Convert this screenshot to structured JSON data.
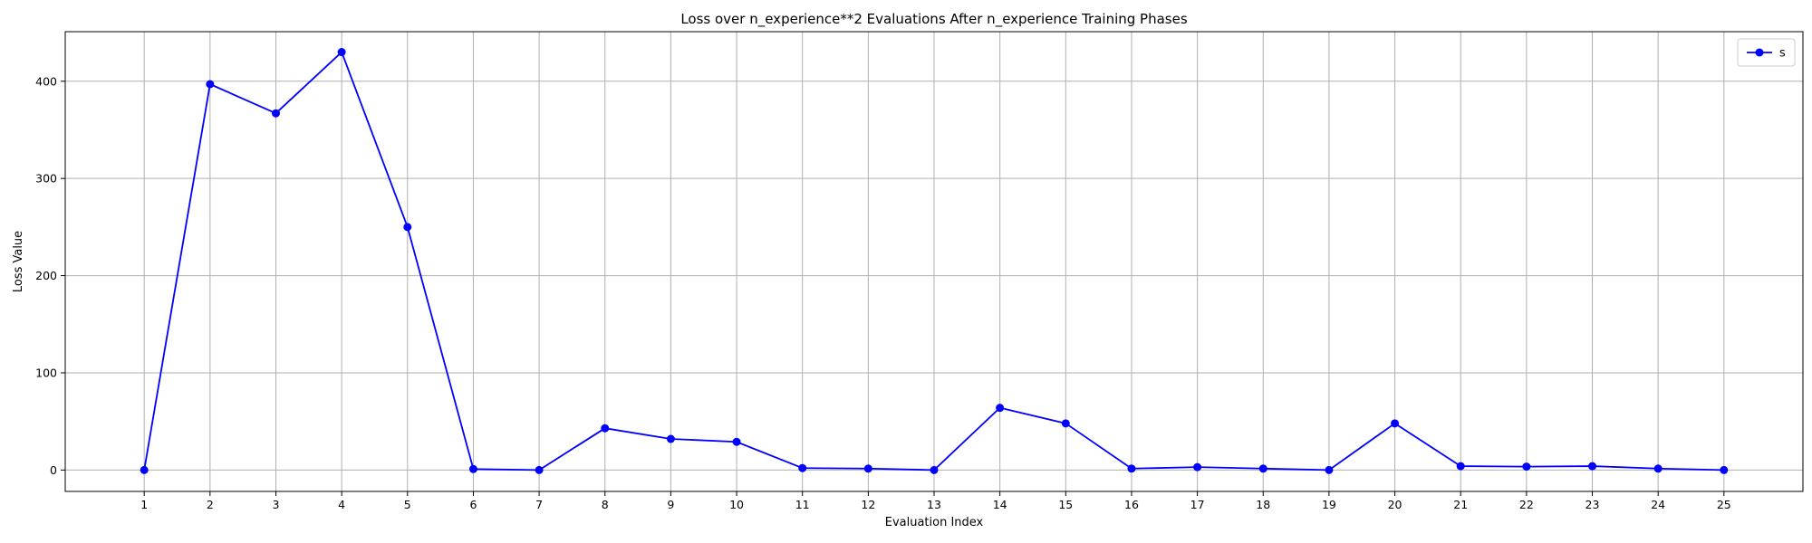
{
  "chart_data": {
    "type": "line",
    "title": "Loss over n_experience**2 Evaluations After n_experience Training Phases",
    "xlabel": "Evaluation Index",
    "ylabel": "Loss Value",
    "x": [
      1,
      2,
      3,
      4,
      5,
      6,
      7,
      8,
      9,
      10,
      11,
      12,
      13,
      14,
      15,
      16,
      17,
      18,
      19,
      20,
      21,
      22,
      23,
      24,
      25
    ],
    "xticks": [
      "1",
      "2",
      "3",
      "4",
      "5",
      "6",
      "7",
      "8",
      "9",
      "10",
      "11",
      "12",
      "13",
      "14",
      "15",
      "16",
      "17",
      "18",
      "19",
      "20",
      "21",
      "22",
      "23",
      "24",
      "25"
    ],
    "yticks": [
      0,
      100,
      200,
      300,
      400
    ],
    "xlim": [
      -0.2,
      26.2
    ],
    "ylim": [
      -22,
      451
    ],
    "grid": true,
    "legend_position": "top-right",
    "series": [
      {
        "name": "s",
        "color": "#0000ff",
        "marker": "circle",
        "values": [
          0,
          397,
          367,
          430,
          250,
          1,
          0,
          43,
          32,
          29,
          2,
          1.5,
          0,
          64,
          48,
          1.5,
          3,
          1.5,
          0,
          48,
          4,
          3.5,
          4,
          1.5,
          0
        ]
      }
    ]
  }
}
